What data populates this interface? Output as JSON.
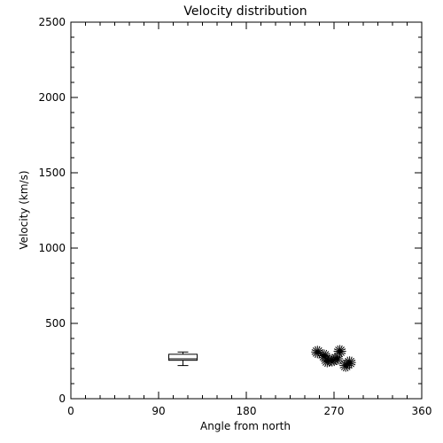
{
  "chart_data": {
    "type": "scatter",
    "title": "Velocity distribution",
    "xlabel": "Angle from north",
    "ylabel": "Velocity (km/s)",
    "xlim": [
      0,
      360
    ],
    "ylim": [
      0,
      2500
    ],
    "xticks": [
      0,
      90,
      180,
      270,
      360
    ],
    "yticks": [
      0,
      500,
      1000,
      1500,
      2000,
      2500
    ],
    "x_minor_step": 15,
    "y_minor_step": 100,
    "grid": false,
    "box_plot": {
      "x": 115,
      "min": 220,
      "q1": 255,
      "median": 265,
      "q3": 295,
      "max": 310
    },
    "points": [
      {
        "x": 253,
        "y": 310
      },
      {
        "x": 260,
        "y": 285
      },
      {
        "x": 263,
        "y": 250
      },
      {
        "x": 268,
        "y": 255
      },
      {
        "x": 273,
        "y": 265
      },
      {
        "x": 276,
        "y": 315
      },
      {
        "x": 282,
        "y": 220
      },
      {
        "x": 286,
        "y": 240
      }
    ]
  }
}
